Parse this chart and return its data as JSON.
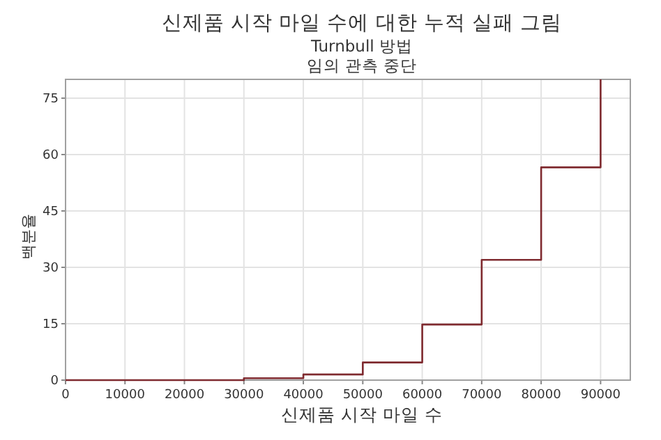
{
  "chart_data": {
    "type": "step",
    "title": "신제품 시작 마일 수에 대한 누적 실패 그림",
    "subtitle": "Turnbull 방법\n임의 관측 중단",
    "xlabel": "신제품 시작 마일 수",
    "ylabel": "백분율",
    "x": [
      0,
      30000,
      40000,
      50000,
      60000,
      70000,
      80000,
      90000
    ],
    "series": [
      {
        "color": "#7f2a2f",
        "values": [
          0,
          0.5,
          1.5,
          4.7,
          14.8,
          32,
          56.6,
          80
        ]
      }
    ],
    "xlim": [
      0,
      95000
    ],
    "ylim": [
      0,
      80
    ],
    "xticks": [
      0,
      10000,
      20000,
      30000,
      40000,
      50000,
      60000,
      70000,
      80000,
      90000
    ],
    "yticks": [
      0,
      15,
      30,
      45,
      60,
      75
    ],
    "grid": true,
    "marker": "none",
    "line_style": "solid"
  }
}
